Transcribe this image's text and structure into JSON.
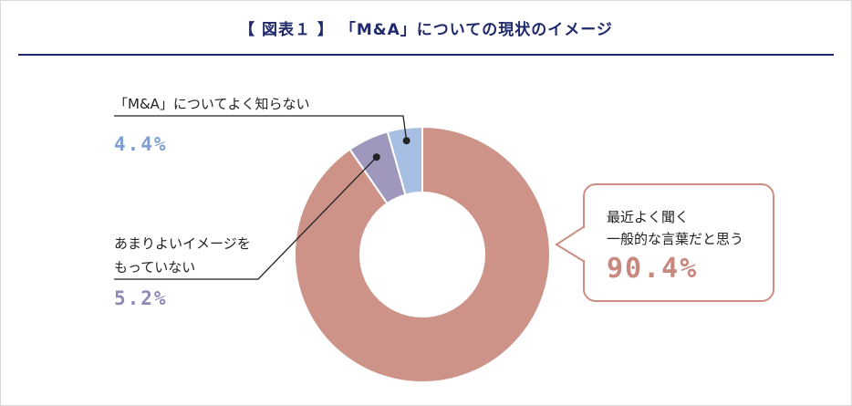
{
  "title": "【 図表１ 】 「M&A」についての現状のイメージ",
  "chart_data": {
    "type": "pie",
    "donut": true,
    "slices": [
      {
        "label": "最近よく聞く一般的な言葉だと思う",
        "label_lines": [
          "最近よく聞く",
          "一般的な言葉だと思う"
        ],
        "value": 90.4,
        "display": "90.4%",
        "color": "#cd9389"
      },
      {
        "label": "あまりよいイメージをもっていない",
        "label_lines": [
          "あまりよいイメージを",
          "もっていない"
        ],
        "value": 5.2,
        "display": "5.2%",
        "color": "#9f97bc"
      },
      {
        "label": "「M&A」についてよく知らない",
        "label_lines": [
          "「M&A」についてよく知らない"
        ],
        "value": 4.4,
        "display": "4.4%",
        "color": "#a7bfe2"
      }
    ],
    "legend": "none"
  },
  "colors": {
    "title": "#1e2a6b",
    "pct_large": "#c7887e",
    "pct_purple": "#8f88b4",
    "pct_blue": "#7f9ed3",
    "leader": "#222222"
  }
}
